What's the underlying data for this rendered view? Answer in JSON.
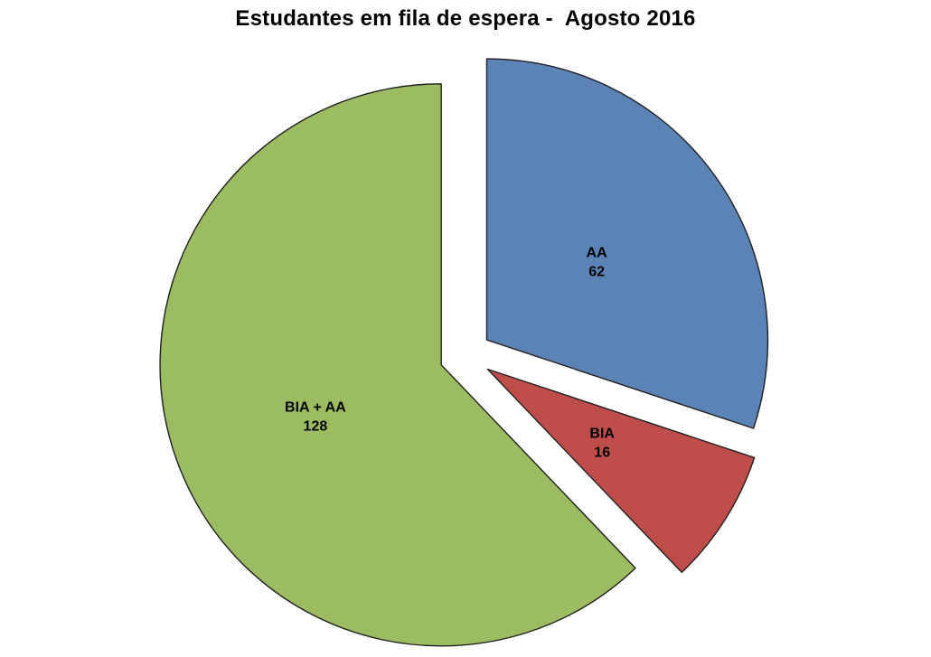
{
  "chart_data": {
    "type": "pie",
    "title": "Estudantes em fila de espera -  Agosto 2016",
    "categories": [
      "AA",
      "BIA",
      "BIA + AA"
    ],
    "values": [
      62,
      16,
      128
    ],
    "slices": [
      {
        "label": "AA",
        "value": 62,
        "color": "#5C83B5"
      },
      {
        "label": "BIA",
        "value": 16,
        "color": "#BF4E4B"
      },
      {
        "label": "BIA + AA",
        "value": 128,
        "color": "#9CBC62"
      }
    ],
    "start_angle_deg": 0,
    "direction": "clockwise",
    "exploded": true,
    "explode_fraction": 0.093,
    "labels_position": "inside",
    "label_format": "name above value",
    "legend": "none",
    "border_color": "#202020",
    "text_color": "#000000",
    "background": "#FFFFFF"
  }
}
